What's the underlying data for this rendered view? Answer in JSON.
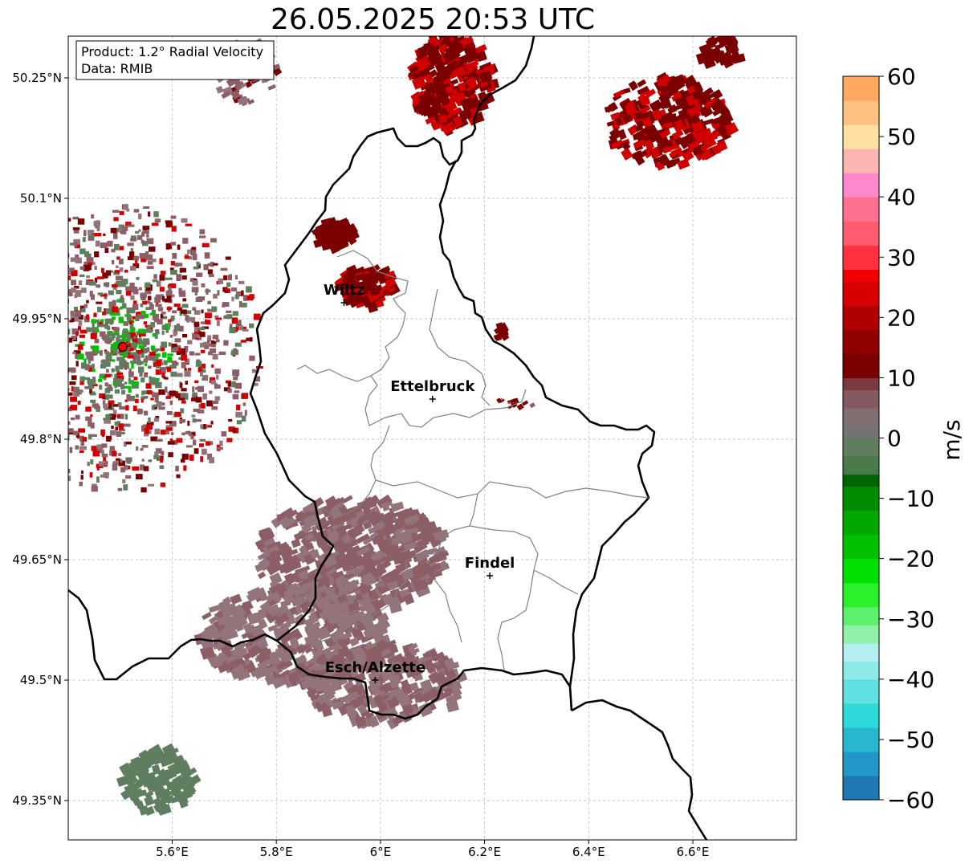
{
  "title": "26.05.2025 20:53 UTC",
  "infobox": {
    "product": "Product: 1.2° Radial Velocity",
    "data": "Data: RMIB"
  },
  "map": {
    "lon_range": [
      5.4,
      6.8
    ],
    "lat_range": [
      49.3,
      50.3
    ],
    "x_ticks": [
      {
        "value": 5.6,
        "label": "5.6°E"
      },
      {
        "value": 5.8,
        "label": "5.8°E"
      },
      {
        "value": 6.0,
        "label": "6°E"
      },
      {
        "value": 6.2,
        "label": "6.2°E"
      },
      {
        "value": 6.4,
        "label": "6.4°E"
      },
      {
        "value": 6.6,
        "label": "6.6°E"
      }
    ],
    "y_ticks": [
      {
        "value": 50.25,
        "label": "50.25°N"
      },
      {
        "value": 50.1,
        "label": "50.1°N"
      },
      {
        "value": 49.95,
        "label": "49.95°N"
      },
      {
        "value": 49.8,
        "label": "49.8°N"
      },
      {
        "value": 49.65,
        "label": "49.65°N"
      },
      {
        "value": 49.5,
        "label": "49.5°N"
      },
      {
        "value": 49.35,
        "label": "49.35°N"
      }
    ],
    "radar_site": {
      "lon": 5.505,
      "lat": 49.915,
      "color": "#ff0000"
    },
    "cities": [
      {
        "name": "Wiltz",
        "lon": 5.93,
        "lat": 49.97
      },
      {
        "name": "Ettelbruck",
        "lon": 6.1,
        "lat": 49.85
      },
      {
        "name": "Findel",
        "lon": 6.21,
        "lat": 49.63
      },
      {
        "name": "Esch/Alzette",
        "lon": 5.99,
        "lat": 49.5
      }
    ]
  },
  "colorbar": {
    "label": "m/s",
    "min": -60,
    "max": 60,
    "ticks": [
      {
        "value": 60,
        "label": "60"
      },
      {
        "value": 50,
        "label": "50"
      },
      {
        "value": 40,
        "label": "40"
      },
      {
        "value": 30,
        "label": "30"
      },
      {
        "value": 20,
        "label": "20"
      },
      {
        "value": 10,
        "label": "10"
      },
      {
        "value": 0,
        "label": "0"
      },
      {
        "value": -10,
        "label": "−10"
      },
      {
        "value": -20,
        "label": "−20"
      },
      {
        "value": -30,
        "label": "−30"
      },
      {
        "value": -40,
        "label": "−40"
      },
      {
        "value": -50,
        "label": "−50"
      },
      {
        "value": -60,
        "label": "−60"
      }
    ],
    "stops": [
      {
        "value": -60,
        "color": "#1f77b4"
      },
      {
        "value": -56,
        "color": "#2397c8"
      },
      {
        "value": -52,
        "color": "#27b7cf"
      },
      {
        "value": -48,
        "color": "#2fd9d9"
      },
      {
        "value": -44,
        "color": "#5fe1e1"
      },
      {
        "value": -40,
        "color": "#8ee9e9"
      },
      {
        "value": -37,
        "color": "#b4eef0"
      },
      {
        "value": -34,
        "color": "#8ff0a8"
      },
      {
        "value": -31,
        "color": "#5cf06c"
      },
      {
        "value": -28,
        "color": "#2cf02c"
      },
      {
        "value": -24,
        "color": "#00e000"
      },
      {
        "value": -20,
        "color": "#00c000"
      },
      {
        "value": -16,
        "color": "#00a800"
      },
      {
        "value": -12,
        "color": "#008c00"
      },
      {
        "value": -8,
        "color": "#006400"
      },
      {
        "value": -6,
        "color": "#4a7a4a"
      },
      {
        "value": -3,
        "color": "#5e7e5e"
      },
      {
        "value": 0,
        "color": "#737373"
      },
      {
        "value": 2,
        "color": "#807070"
      },
      {
        "value": 5,
        "color": "#825a60"
      },
      {
        "value": 8,
        "color": "#7a3a40"
      },
      {
        "value": 10,
        "color": "#7a0000"
      },
      {
        "value": 14,
        "color": "#900000"
      },
      {
        "value": 18,
        "color": "#b00000"
      },
      {
        "value": 22,
        "color": "#d80000"
      },
      {
        "value": 26,
        "color": "#f00000"
      },
      {
        "value": 28,
        "color": "#ff3040"
      },
      {
        "value": 32,
        "color": "#ff5c70"
      },
      {
        "value": 36,
        "color": "#ff7090"
      },
      {
        "value": 40,
        "color": "#ff88cc"
      },
      {
        "value": 44,
        "color": "#ffb4b4"
      },
      {
        "value": 48,
        "color": "#ffe0a0"
      },
      {
        "value": 52,
        "color": "#ffc080"
      },
      {
        "value": 56,
        "color": "#ffa860"
      },
      {
        "value": 60,
        "color": "#ff9a50"
      }
    ]
  },
  "echo_colors": {
    "mauve": "#8c5e66",
    "mauve_light": "#93747b",
    "gray_green": "#5f7e5f",
    "dark_red": "#7a0000",
    "red": "#d00000",
    "green": "#00c000",
    "pink": "#ff5c8a"
  }
}
